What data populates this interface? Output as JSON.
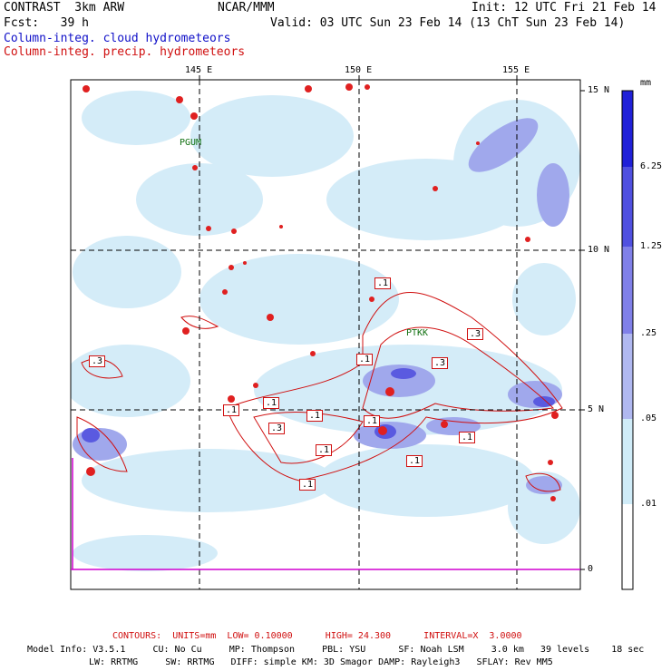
{
  "header": {
    "model": "CONTRAST  3km ARW",
    "org": "NCAR/MMM",
    "init": "Init: 12 UTC Fri 21 Feb 14",
    "fcst": "Fcst:   39 h",
    "valid": "Valid: 03 UTC Sun 23 Feb 14 (13 ChT Sun 23 Feb 14)",
    "field_cloud": "Column-integ. cloud hydrometeors",
    "field_precip": "Column-integ. precip. hydrometeors"
  },
  "map": {
    "lon_labels": [
      "145 E",
      "150 E",
      "155 E"
    ],
    "lat_labels": [
      "15 N",
      "10 N",
      "5 N",
      "0"
    ],
    "stations": [
      "PGUM",
      "PTKK"
    ],
    "contour_labels": [
      ".1",
      ".1",
      ".1",
      ".3",
      ".3",
      ".3",
      ".3",
      ".1",
      ".1",
      ".1",
      ".1",
      ".1",
      ".1",
      ".1"
    ]
  },
  "colorbar": {
    "units": "mm",
    "labels": [
      "6.25",
      "1.25",
      ".25",
      ".05",
      ".01"
    ],
    "colors": [
      "#2020d8",
      "#5050e0",
      "#8080e8",
      "#b0b8f0",
      "#d0ecf8",
      "#ffffff"
    ]
  },
  "footer": {
    "contours": "CONTOURS:  UNITS=mm  LOW= 0.10000      HIGH= 24.300      INTERVAL=X  3.0000",
    "model_info_1": "Model Info: V3.5.1     CU: No Cu     MP: Thompson     PBL: YSU      SF: Noah LSM     3.0 km   39 levels    18 sec",
    "model_info_2": "LW: RRTMG     SW: RRTMG   DIFF: simple KM: 3D Smagor DAMP: Rayleigh3   SFLAY: Rev MM5"
  }
}
